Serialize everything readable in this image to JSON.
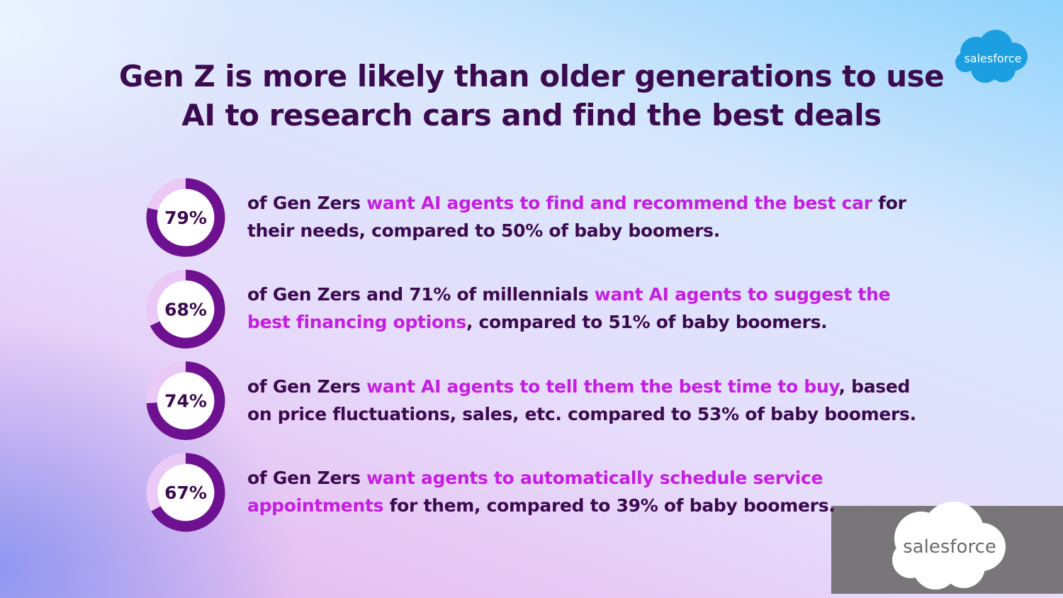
{
  "title": [
    "Gen Z is more likely than older generations to use",
    "AI to research cars and find the best deals"
  ],
  "logo_top": "salesforce",
  "logo_bottom": "salesforce",
  "colors": {
    "text": "#3b0a4f",
    "highlight": "#c41fe0",
    "ring": "#6e1190",
    "track": "#ebc9f7"
  },
  "items": [
    {
      "value": 79,
      "label": "79%",
      "text": [
        {
          "t": "of Gen Zers ",
          "highlight": false
        },
        {
          "t": "want AI agents to find and recommend the best car",
          "highlight": true
        },
        {
          "t": " for their needs, compared to 50% of baby boomers.",
          "highlight": false
        }
      ]
    },
    {
      "value": 68,
      "label": "68%",
      "text": [
        {
          "t": "of Gen Zers and 71% of millennials ",
          "highlight": false
        },
        {
          "t": "want AI agents to suggest the best financing options",
          "highlight": true
        },
        {
          "t": ", compared to 51% of baby boomers.",
          "highlight": false
        }
      ]
    },
    {
      "value": 74,
      "label": "74%",
      "text": [
        {
          "t": "of Gen Zers ",
          "highlight": false
        },
        {
          "t": "want AI agents to tell them the best time to buy",
          "highlight": true
        },
        {
          "t": ", based on price fluctuations, sales, etc. compared to 53% of baby boomers.",
          "highlight": false
        }
      ]
    },
    {
      "value": 67,
      "label": "67%",
      "text": [
        {
          "t": "of Gen Zers ",
          "highlight": false
        },
        {
          "t": "want agents to automatically schedule service appointments",
          "highlight": true
        },
        {
          "t": " for them, compared to 39% of baby boomers.",
          "highlight": false
        }
      ]
    }
  ]
}
